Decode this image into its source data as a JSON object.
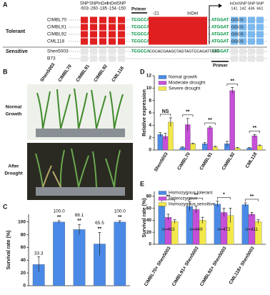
{
  "panel_a": {
    "label": "A",
    "markers_left": [
      {
        "type": "SNP",
        "pos": "-503"
      },
      {
        "type": "SNP",
        "pos": "-260"
      },
      {
        "type": "InDel",
        "pos": "-185"
      },
      {
        "type": "InDel",
        "pos": "-154"
      },
      {
        "type": "SNP",
        "pos": "-150"
      }
    ],
    "primer_top": "Primer",
    "pos_21": "-21",
    "indel_label": "InDel",
    "markers_right": [
      {
        "type": "InDel",
        "pos": "141"
      },
      {
        "type": "SNP",
        "pos": "142"
      },
      {
        "type": "SNP",
        "pos": "436"
      },
      {
        "type": "SNP",
        "pos": "661"
      }
    ],
    "groups": [
      {
        "name": "Tolerant",
        "lines": [
          "CIMBL70",
          "CIMBL91",
          "CIMBL92",
          "CML118"
        ]
      },
      {
        "name": "Sensitive",
        "lines": [
          "Shen5003",
          "B73"
        ]
      }
    ],
    "seq_left": "TCGCCA",
    "seq_start": "ATGGAT",
    "seq_right": "GGCG",
    "seq_sensitive": "CGCACGAAGCTAGTAGTCCAGATTGAT",
    "primer_bottom": "Primer"
  },
  "panel_b": {
    "label": "B",
    "lines": [
      "Shen5003",
      "CIMBL70",
      "CIMBL91",
      "CIMBL92",
      "CML118"
    ],
    "rows": [
      [
        "Normal",
        "Growth"
      ],
      [
        "After",
        "Drought"
      ]
    ]
  },
  "chart_data": [
    {
      "type": "bar",
      "label": "C",
      "y_label": "Survival rate (%)",
      "color": "#4a8ae6",
      "values": [
        33.3,
        100,
        88.1,
        65.5,
        100
      ],
      "value_labels": [
        "33.3",
        "100.0",
        "88.1",
        "65.5",
        "100.0"
      ],
      "errors": [
        12,
        2,
        8,
        18,
        2
      ],
      "significance": [
        null,
        "**",
        "**",
        "**",
        "**"
      ],
      "ylim": [
        0,
        112
      ],
      "yticks": [
        0,
        20,
        40,
        60,
        80,
        100
      ]
    },
    {
      "type": "grouped_bar",
      "label": "D",
      "y_label": "Relative expression",
      "legend": "upper left",
      "categories": [
        "Shen5003",
        "CIMBL70",
        "CIMBL91",
        "CIMBL92",
        "CML118"
      ],
      "series": [
        {
          "name": "Nomal growth",
          "color": "#4a8ae6",
          "values": [
            2.5,
            0.4,
            1.0,
            1.0,
            0.3
          ],
          "errors": [
            0.3,
            0.1,
            0.2,
            0.4,
            0.1
          ]
        },
        {
          "name": "Moderate drought",
          "color": "#c64fd8",
          "values": [
            2.2,
            4.1,
            3.6,
            9.6,
            2.3
          ],
          "errors": [
            0.5,
            1.0,
            0.2,
            0.5,
            0.2
          ]
        },
        {
          "name": "Severe drought",
          "color": "#f2e84a",
          "values": [
            4.5,
            1.0,
            0.5,
            0.3,
            0.7
          ],
          "errors": [
            0.7,
            0.1,
            0.1,
            0.1,
            0.1
          ]
        }
      ],
      "significance": [
        "NS",
        "**",
        "**",
        "**",
        "**"
      ],
      "ylim": [
        0,
        12
      ],
      "yticks": [
        0,
        2,
        4,
        6,
        8,
        10,
        12
      ]
    },
    {
      "type": "grouped_bar",
      "label": "E",
      "y_label": "Survival rate (%)",
      "legend": "upper left",
      "categories": [
        "CIMBL70× Shen5003",
        "CIMBL91× Shen5003",
        "CIMBL92× Shen5003",
        "CML118× Shen5003"
      ],
      "series": [
        {
          "name": "Homozygous tolerant",
          "color": "#4a8ae6",
          "values": [
            65,
            63,
            67,
            66
          ],
          "errors": [
            3,
            8,
            5,
            3
          ]
        },
        {
          "name": "Heterozygous",
          "color": "#c64fd8",
          "values": [
            45,
            58,
            53,
            50
          ],
          "errors": [
            5,
            6,
            7,
            3
          ]
        },
        {
          "name": "Homozygous sensitive",
          "color": "#f2e84a",
          "values": [
            38,
            40,
            48,
            38
          ],
          "errors": [
            3,
            5,
            12,
            3
          ]
        }
      ],
      "significance": [
        "**",
        "**",
        "*",
        "**"
      ],
      "n_labels": [
        "n=463",
        "n=449",
        "n=472",
        "n=411"
      ],
      "ylim": [
        0,
        88
      ],
      "yticks": [
        0,
        20,
        40,
        60,
        80
      ]
    }
  ]
}
